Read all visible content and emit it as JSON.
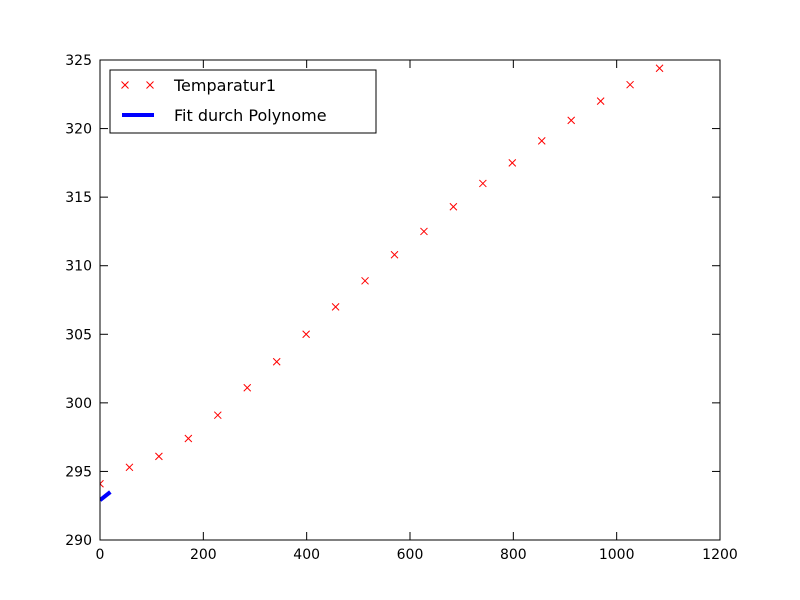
{
  "chart_data": {
    "type": "line",
    "title": "",
    "xlabel": "",
    "ylabel": "",
    "xlim": [
      0,
      1200
    ],
    "ylim": [
      290,
      325
    ],
    "xticks": [
      0,
      200,
      400,
      600,
      800,
      1000,
      1200
    ],
    "yticks": [
      290,
      295,
      300,
      305,
      310,
      315,
      320,
      325
    ],
    "xtick_labels": [
      "0",
      "200",
      "400",
      "600",
      "800",
      "1000",
      "1200"
    ],
    "ytick_labels": [
      "290",
      "295",
      "300",
      "305",
      "310",
      "315",
      "320",
      "325"
    ],
    "grid": false,
    "legend_position": "top-left",
    "series": [
      {
        "name": "Temparatur1",
        "style": "markers",
        "marker": "x",
        "color": "#ff0000",
        "x": [
          0,
          57,
          114,
          171,
          228,
          285,
          342,
          399,
          456,
          513,
          570,
          627,
          684,
          741,
          798,
          855,
          912,
          969,
          1026,
          1083
        ],
        "y": [
          294.1,
          295.3,
          296.1,
          297.4,
          299.1,
          301.1,
          303.0,
          305.0,
          307.0,
          308.9,
          310.8,
          312.5,
          314.3,
          316.0,
          317.5,
          319.1,
          320.6,
          322.0,
          323.2,
          324.4
        ]
      },
      {
        "name": "Fit durch Polynome",
        "style": "line",
        "color": "#0000ff",
        "x": [
          0,
          20
        ],
        "y": [
          292.9,
          293.5
        ]
      }
    ]
  }
}
